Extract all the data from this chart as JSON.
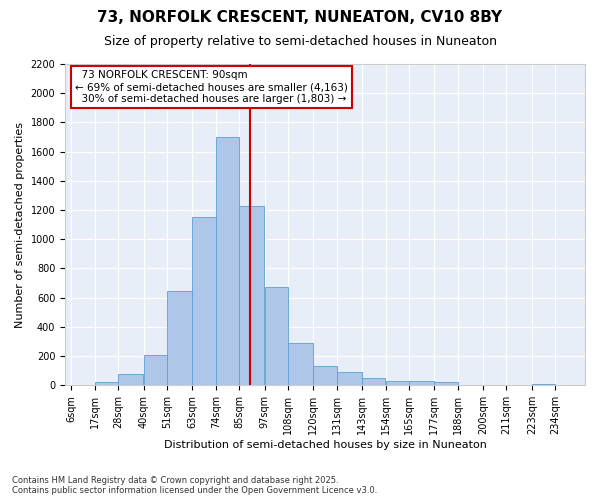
{
  "title": "73, NORFOLK CRESCENT, NUNEATON, CV10 8BY",
  "subtitle": "Size of property relative to semi-detached houses in Nuneaton",
  "xlabel": "Distribution of semi-detached houses by size in Nuneaton",
  "ylabel": "Number of semi-detached properties",
  "bins": [
    "6sqm",
    "17sqm",
    "28sqm",
    "40sqm",
    "51sqm",
    "63sqm",
    "74sqm",
    "85sqm",
    "97sqm",
    "108sqm",
    "120sqm",
    "131sqm",
    "143sqm",
    "154sqm",
    "165sqm",
    "177sqm",
    "188sqm",
    "200sqm",
    "211sqm",
    "223sqm",
    "234sqm"
  ],
  "bin_edges": [
    6,
    17,
    28,
    40,
    51,
    63,
    74,
    85,
    97,
    108,
    120,
    131,
    143,
    154,
    165,
    177,
    188,
    200,
    211,
    223,
    234
  ],
  "values": [
    0,
    25,
    80,
    210,
    645,
    1150,
    1700,
    1230,
    670,
    290,
    130,
    90,
    48,
    30,
    30,
    20,
    0,
    0,
    0,
    10
  ],
  "bar_color": "#aec6e8",
  "bar_edge_color": "#5a9fd4",
  "property_size": 90,
  "property_label": "73 NORFOLK CRESCENT: 90sqm",
  "pct_smaller": "69%",
  "n_smaller": "4,163",
  "pct_larger": "30%",
  "n_larger": "1,803",
  "vline_color": "#cc0000",
  "annotation_box_edge_color": "#cc0000",
  "ylim": [
    0,
    2200
  ],
  "yticks": [
    0,
    200,
    400,
    600,
    800,
    1000,
    1200,
    1400,
    1600,
    1800,
    2000,
    2200
  ],
  "bg_color": "#e8eef8",
  "grid_color": "#ffffff",
  "footer": "Contains HM Land Registry data © Crown copyright and database right 2025.\nContains public sector information licensed under the Open Government Licence v3.0.",
  "title_fontsize": 11,
  "subtitle_fontsize": 9,
  "axis_label_fontsize": 8,
  "tick_fontsize": 7,
  "annotation_fontsize": 7.5,
  "footer_fontsize": 6
}
